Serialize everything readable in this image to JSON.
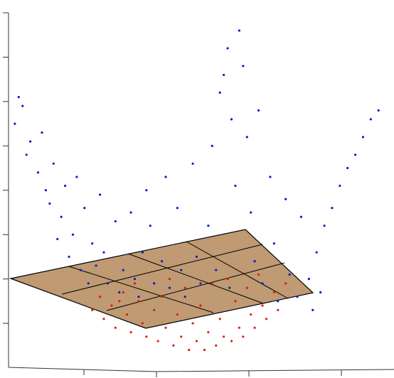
{
  "chart_data": {
    "type": "scatter",
    "xlim": [
      0,
      10
    ],
    "ylim": [
      -1,
      7
    ],
    "yticks": [
      0,
      1,
      2,
      3,
      4,
      5,
      6,
      7
    ],
    "series": [
      {
        "color": "#0a1ccc",
        "x": [
          0.2,
          0.4,
          0.6,
          0.5,
          0.8,
          0.9,
          1.0,
          1.2,
          1.1,
          1.4,
          1.5,
          1.3,
          1.7,
          1.6,
          1.9,
          2.0,
          2.2,
          2.3,
          2.1,
          2.5,
          2.6,
          2.8,
          3.0,
          2.9,
          3.2,
          3.3,
          3.5,
          3.4,
          3.7,
          3.8,
          4.0,
          4.1,
          4.2,
          4.4,
          4.5,
          4.6,
          4.8,
          4.9,
          5.0,
          5.2,
          5.3,
          5.4,
          5.5,
          5.6,
          5.7,
          5.8,
          5.75,
          5.9,
          6.0,
          6.1,
          6.2,
          6.3,
          6.4,
          6.5,
          6.6,
          6.8,
          6.9,
          7.0,
          7.2,
          7.3,
          7.5,
          7.6,
          7.8,
          8.0,
          8.2,
          8.4,
          8.6,
          8.8,
          9.0,
          9.2,
          9.4,
          9.6,
          8.1,
          7.9,
          3.6,
          2.4,
          1.8,
          0.3
        ],
        "values": [
          4.5,
          4.9,
          4.1,
          3.8,
          3.4,
          4.3,
          3.0,
          3.6,
          2.7,
          2.4,
          3.1,
          1.9,
          2.0,
          1.5,
          1.2,
          2.6,
          1.8,
          1.3,
          0.9,
          1.6,
          0.9,
          2.3,
          1.2,
          0.7,
          2.5,
          1.0,
          1.6,
          0.6,
          2.2,
          0.9,
          1.4,
          3.3,
          0.8,
          2.6,
          1.2,
          0.6,
          3.6,
          1.5,
          0.9,
          2.2,
          4.0,
          1.2,
          5.2,
          5.6,
          6.2,
          4.6,
          0.8,
          3.1,
          6.6,
          5.8,
          4.2,
          2.5,
          1.4,
          4.8,
          0.9,
          3.3,
          1.8,
          0.5,
          2.8,
          1.1,
          0.6,
          2.4,
          1.0,
          1.6,
          2.2,
          2.6,
          3.1,
          3.5,
          3.8,
          4.2,
          4.6,
          4.8,
          0.7,
          0.3,
          3.0,
          2.9,
          3.3,
          5.1
        ]
      },
      {
        "color": "#d8200a",
        "x": [
          2.2,
          2.4,
          2.5,
          2.7,
          2.8,
          3.0,
          3.1,
          3.2,
          3.4,
          3.5,
          3.6,
          3.8,
          3.9,
          4.0,
          4.1,
          4.3,
          4.4,
          4.5,
          4.6,
          4.7,
          4.8,
          4.9,
          5.0,
          5.1,
          5.2,
          5.3,
          5.4,
          5.5,
          5.6,
          5.7,
          5.8,
          5.9,
          6.0,
          6.1,
          6.2,
          6.3,
          6.4,
          6.5,
          6.6,
          6.7,
          6.9,
          7.0,
          7.2,
          3.3,
          4.2,
          2.9
        ],
        "values": [
          0.3,
          0.6,
          0.1,
          0.4,
          -0.1,
          0.7,
          0.2,
          -0.2,
          0.5,
          0.0,
          -0.3,
          0.3,
          -0.4,
          0.6,
          -0.1,
          -0.5,
          0.2,
          -0.3,
          0.8,
          -0.6,
          0.0,
          -0.4,
          0.4,
          -0.6,
          -0.2,
          0.9,
          -0.5,
          0.1,
          -0.3,
          1.0,
          -0.4,
          0.5,
          -0.1,
          -0.3,
          0.8,
          0.2,
          -0.1,
          1.1,
          0.4,
          0.1,
          0.7,
          0.3,
          0.9,
          0.9,
          1.0,
          0.5
        ]
      }
    ]
  }
}
